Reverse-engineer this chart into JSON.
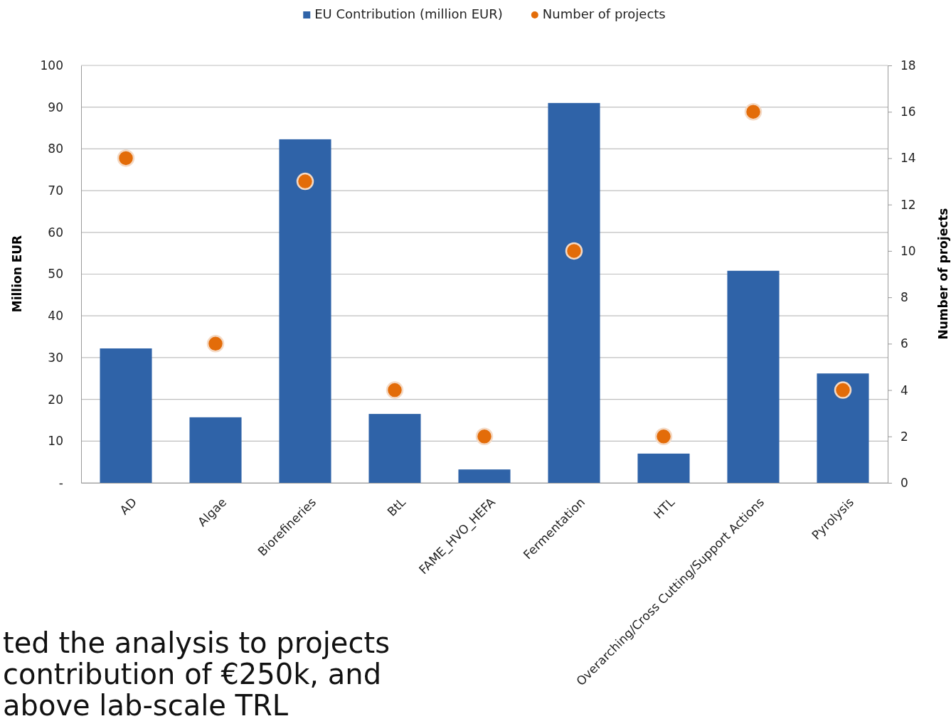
{
  "chart_data": {
    "type": "bar",
    "ylabel": "Million EUR",
    "y2label": "Number of projects",
    "categories": [
      "AD",
      "Algae",
      "Biorefineries",
      "BtL",
      "FAME_HVO_HEFA",
      "Fermentation",
      "HTL",
      "Overarching/Cross Cutting/Support Actions",
      "Pyrolysis"
    ],
    "series": [
      {
        "name": "EU Contribution (million EUR)",
        "color": "#2f63a8",
        "values": [
          32.2,
          15.7,
          82.3,
          16.5,
          3.2,
          91,
          7,
          50.8,
          26.2
        ]
      },
      {
        "name": "Number of projects",
        "type": "scatter",
        "axis": "y2",
        "color": "#e36c09",
        "values": [
          14,
          6,
          13,
          4,
          2,
          10,
          2,
          16,
          4
        ]
      }
    ],
    "ylim": [
      0,
      100
    ],
    "yticks": [
      {
        "value": 0,
        "label": "-"
      },
      10,
      20,
      30,
      40,
      50,
      60,
      70,
      80,
      90,
      100
    ],
    "y2lim": [
      0,
      18
    ],
    "y2ticks": [
      0,
      2,
      4,
      6,
      8,
      10,
      12,
      14,
      16,
      18
    ],
    "grid": "y",
    "legend": "top",
    "marker": "circle",
    "annotations": [
      "ted the analysis to projects",
      "contribution of €250k, and",
      "above lab-scale TRL"
    ]
  }
}
